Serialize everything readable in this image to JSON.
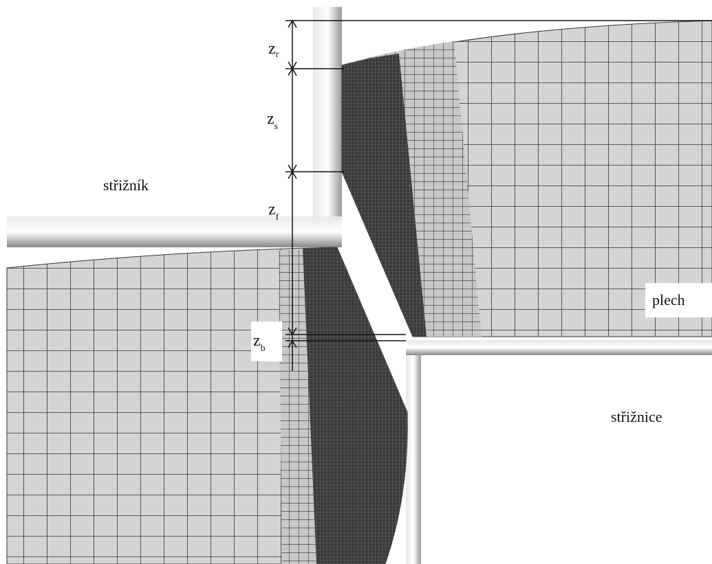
{
  "labels": {
    "punch": "střižník",
    "sheet": "plech",
    "die": "střižnice"
  },
  "dimensions": [
    {
      "symbol": "z",
      "subscript": "r"
    },
    {
      "symbol": "z",
      "subscript": "s"
    },
    {
      "symbol": "z",
      "subscript": "f"
    },
    {
      "symbol": "z",
      "subscript": "b"
    }
  ]
}
